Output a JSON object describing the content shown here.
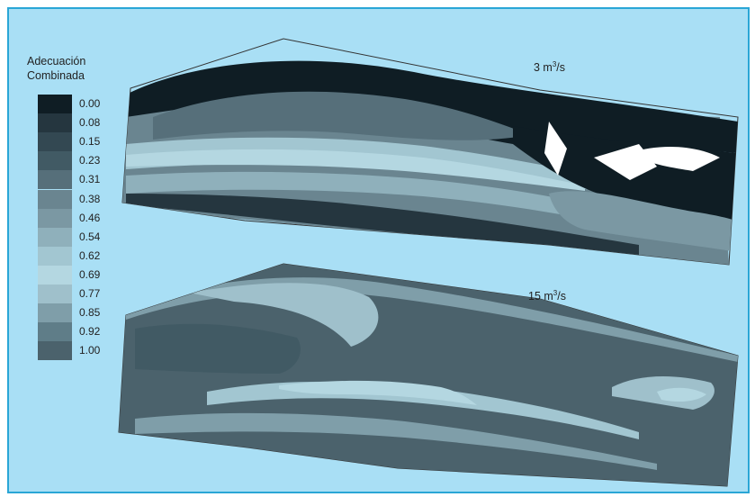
{
  "legend": {
    "title_line1": "Adecuación",
    "title_line2": "Combinada",
    "ticks": [
      "0.00",
      "0.08",
      "0.15",
      "0.23",
      "0.31",
      "0.38",
      "0.46",
      "0.54",
      "0.62",
      "0.69",
      "0.77",
      "0.85",
      "0.92",
      "1.00"
    ],
    "colors": [
      "#0f1d24",
      "#25363f",
      "#334852",
      "#415a64",
      "#566f7a",
      "#6a8590",
      "#7b98a3",
      "#8fb0bb",
      "#a2c6d1",
      "#b4d7e1",
      "#9fc0cb",
      "#7f9ea9",
      "#5f7d88",
      "#4b626c"
    ]
  },
  "maps": [
    {
      "flow_value": "3 m",
      "flow_unit_exp": "3",
      "flow_unit_tail": "/s"
    },
    {
      "flow_value": "15 m",
      "flow_unit_exp": "3",
      "flow_unit_tail": "/s"
    }
  ]
}
